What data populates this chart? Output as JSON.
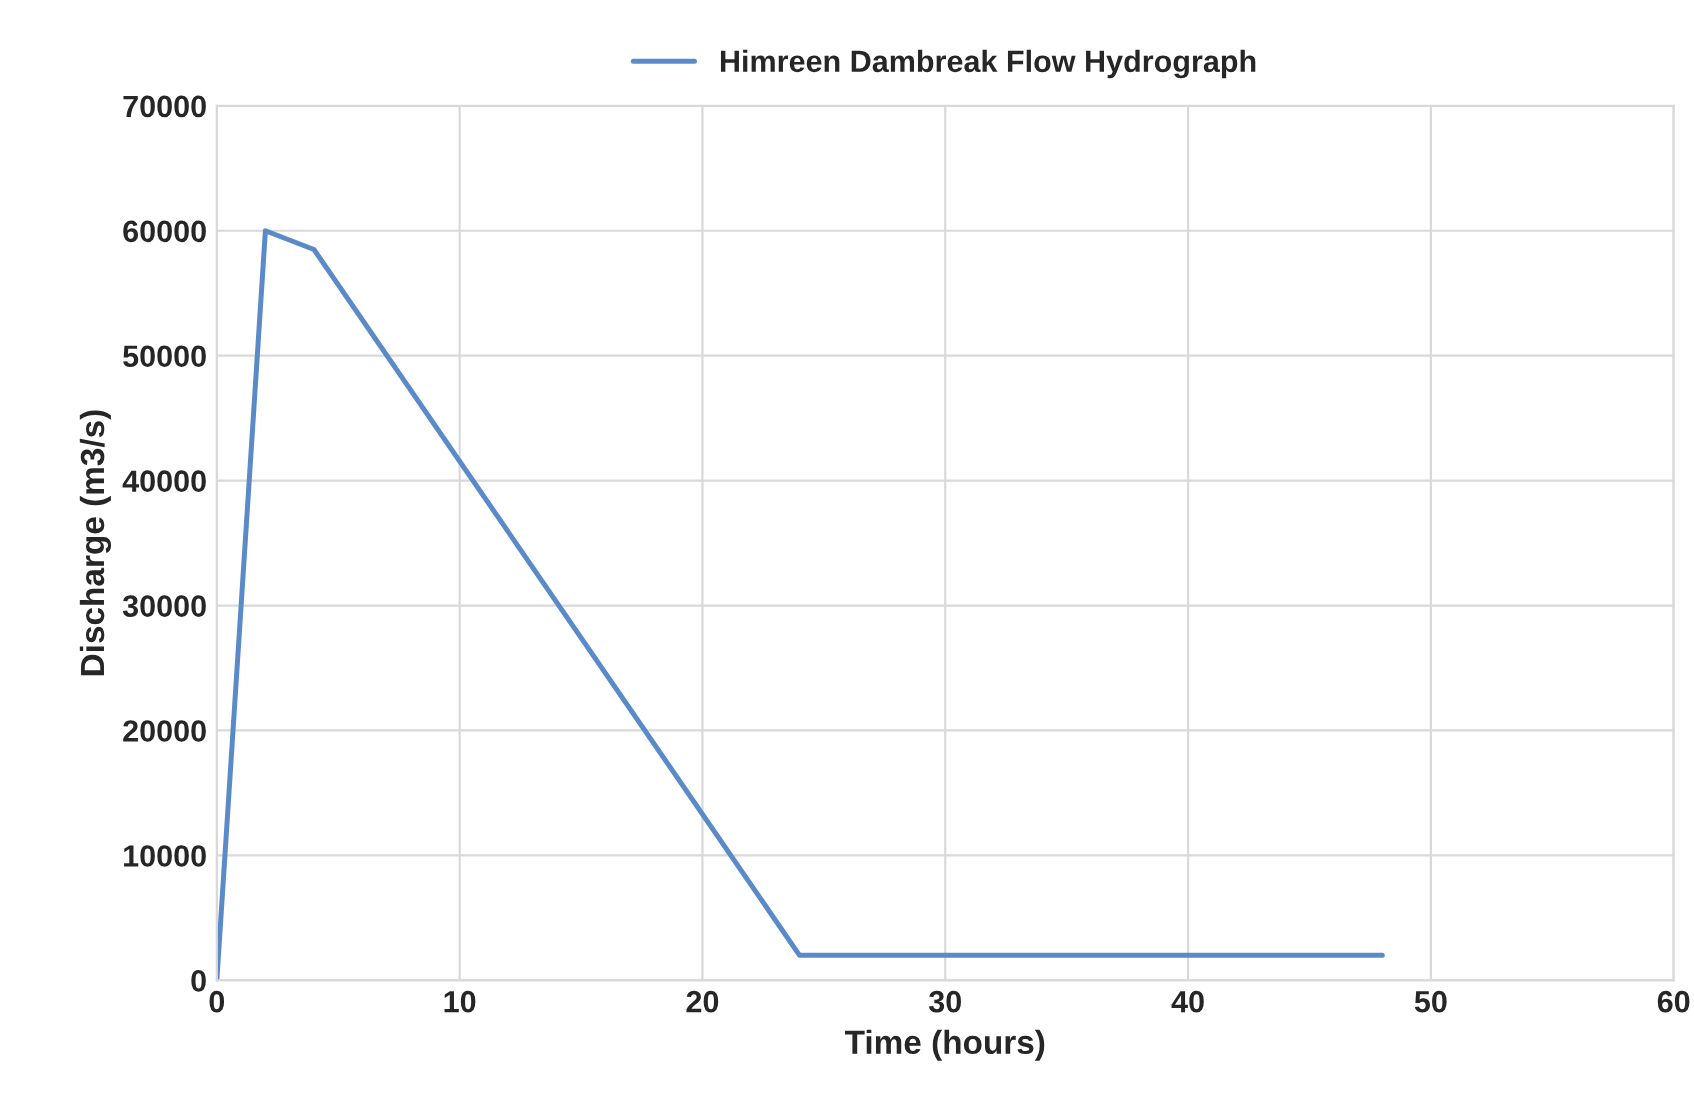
{
  "chart_data": {
    "type": "line",
    "xlabel": "Time (hours)",
    "ylabel": "Discharge (m3/s)",
    "x": [
      0,
      2,
      4,
      24,
      48
    ],
    "series": [
      {
        "name": "Himreen Dambreak Flow Hydrograph",
        "color": "#5b8ac9",
        "values": [
          0,
          60000,
          58500,
          2000,
          2000
        ]
      }
    ],
    "xlim": [
      0,
      60
    ],
    "xticks": [
      0,
      10,
      20,
      30,
      40,
      50,
      60
    ],
    "ylim": [
      0,
      70000
    ],
    "yticks": [
      0,
      10000,
      20000,
      30000,
      40000,
      50000,
      60000,
      70000
    ],
    "grid": true,
    "legend": "top",
    "marker": "none",
    "line_style": "solid"
  }
}
